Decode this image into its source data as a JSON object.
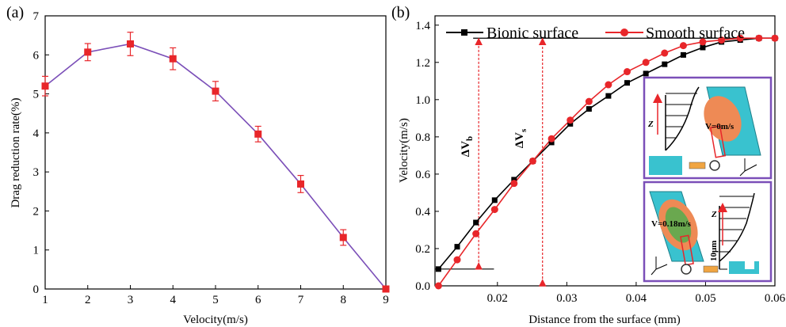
{
  "chart_data": [
    {
      "type": "line",
      "panel_label": "(a)",
      "xlabel": "Velocity(m/s)",
      "ylabel": "Drag reduction rate(%)",
      "xlim": [
        1,
        9
      ],
      "ylim": [
        0,
        7
      ],
      "x_ticks": [
        "1",
        "2",
        "3",
        "4",
        "5",
        "6",
        "7",
        "8",
        "9"
      ],
      "y_ticks": [
        "0",
        "1",
        "2",
        "3",
        "4",
        "5",
        "6",
        "7"
      ],
      "line_color": "#7b4fb8",
      "marker_color": "#e8262a",
      "series": [
        {
          "x": [
            1,
            2,
            3,
            4,
            5,
            6,
            7,
            8,
            9
          ],
          "y": [
            5.2,
            6.07,
            6.28,
            5.9,
            5.07,
            3.97,
            2.69,
            1.32,
            0
          ],
          "error": [
            0.25,
            0.22,
            0.3,
            0.28,
            0.25,
            0.2,
            0.22,
            0.2,
            0
          ]
        }
      ]
    },
    {
      "type": "line",
      "panel_label": "(b)",
      "xlabel": "Distance from the surface (mm)",
      "ylabel": "Velocity(m/s)",
      "xlim": [
        0.011,
        0.06
      ],
      "ylim": [
        0,
        1.45
      ],
      "x_ticks": [
        "0.02",
        "0.03",
        "0.04",
        "0.05",
        "0.06"
      ],
      "y_ticks": [
        "0.0",
        "0.2",
        "0.4",
        "0.6",
        "0.8",
        "1.0",
        "1.2",
        "1.4"
      ],
      "legend_position": "top",
      "series": [
        {
          "name": "Bionic surface",
          "color": "#000000",
          "marker": "square",
          "x": [
            0.0115,
            0.0142,
            0.0169,
            0.0196,
            0.0224,
            0.0251,
            0.0278,
            0.0305,
            0.0332,
            0.036,
            0.0387,
            0.0414,
            0.0441,
            0.0468,
            0.0496,
            0.0523,
            0.055,
            0.0577,
            0.06
          ],
          "y": [
            0.09,
            0.21,
            0.34,
            0.46,
            0.57,
            0.67,
            0.77,
            0.87,
            0.95,
            1.02,
            1.09,
            1.14,
            1.19,
            1.24,
            1.28,
            1.31,
            1.32,
            1.33,
            1.33
          ]
        },
        {
          "name": "Smooth surface",
          "color": "#e8262a",
          "marker": "circle",
          "x": [
            0.0115,
            0.0142,
            0.0169,
            0.0196,
            0.0224,
            0.0251,
            0.0278,
            0.0305,
            0.0332,
            0.036,
            0.0387,
            0.0414,
            0.0441,
            0.0468,
            0.0496,
            0.0523,
            0.055,
            0.0577,
            0.06
          ],
          "y": [
            0.0,
            0.14,
            0.28,
            0.41,
            0.55,
            0.67,
            0.79,
            0.89,
            0.99,
            1.08,
            1.15,
            1.2,
            1.25,
            1.29,
            1.31,
            1.32,
            1.33,
            1.33,
            1.33
          ]
        }
      ],
      "reference_lines": {
        "top_velocity": 1.33,
        "bionic_slip_velocity": 0.09,
        "smooth_slip_velocity": 0.0,
        "delta_vb_x": 0.0173,
        "delta_vs_x": 0.0265
      },
      "annotations": {
        "delta_vb": "ΔV",
        "delta_vb_sub": "b",
        "delta_vs": "ΔV",
        "delta_vs_sub": "s",
        "inset_top_axis": "Z",
        "inset_top_velocity": "V=0m/s",
        "inset_bottom_axis": "Z",
        "inset_bottom_velocity": "V=0.18m/s",
        "inset_bottom_gap": "10μm",
        "inset_border_color": "#7b4fb8"
      }
    }
  ]
}
